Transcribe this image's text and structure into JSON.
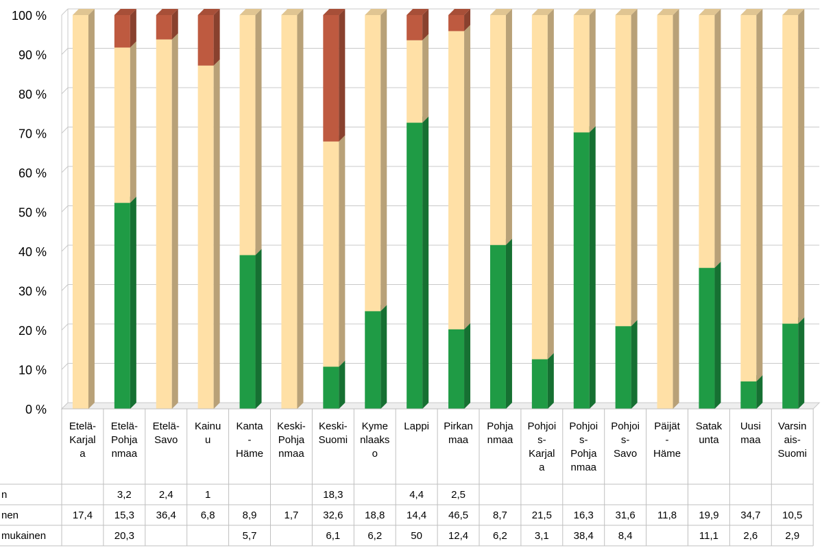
{
  "chart_data": {
    "type": "bar",
    "stacked": "percent",
    "three_d": true,
    "y_tick_labels": [
      "0 %",
      "10 %",
      "20 %",
      "30 %",
      "40 %",
      "50 %",
      "60 %",
      "70 %",
      "80 %",
      "90 %",
      "100 %"
    ],
    "categories": [
      [
        "Etelä-",
        "Karjal",
        "a"
      ],
      [
        "Etelä-",
        "Pohja",
        "nmaa"
      ],
      [
        "Etelä-",
        "Savo"
      ],
      [
        "Kainu",
        "u"
      ],
      [
        "Kanta",
        "-",
        "Häme"
      ],
      [
        "Keski-",
        "Pohja",
        "nmaa"
      ],
      [
        "Keski-",
        "Suomi"
      ],
      [
        "Kyme",
        "nlaaks",
        "o"
      ],
      [
        "Lappi"
      ],
      [
        "Pirkan",
        "maa"
      ],
      [
        "Pohja",
        "nmaa"
      ],
      [
        "Pohjoi",
        "s-",
        "Karjal",
        "a"
      ],
      [
        "Pohjoi",
        "s-",
        "Pohja",
        "nmaa"
      ],
      [
        "Pohjoi",
        "s-",
        "Savo"
      ],
      [
        "Päijät",
        "-",
        "Häme"
      ],
      [
        "Satak",
        "unta"
      ],
      [
        "Uusi",
        "maa"
      ],
      [
        "Varsin",
        "ais-",
        "Suomi"
      ]
    ],
    "series": [
      {
        "name": "mukainen",
        "color": "#1f9b45",
        "values": [
          null,
          20.3,
          null,
          null,
          5.7,
          null,
          6.1,
          6.2,
          50,
          12.4,
          6.2,
          3.1,
          38.4,
          8.4,
          null,
          11.1,
          2.6,
          2.9
        ],
        "labels": [
          "",
          "20,3",
          "",
          "",
          "5,7",
          "",
          "6,1",
          "6,2",
          "50",
          "12,4",
          "6,2",
          "3,1",
          "38,4",
          "8,4",
          "",
          "11,1",
          "2,6",
          "2,9"
        ]
      },
      {
        "name": "nen",
        "color": "#ffe0a6",
        "values": [
          17.4,
          15.3,
          36.4,
          6.8,
          8.9,
          1.7,
          32.6,
          18.8,
          14.4,
          46.5,
          8.7,
          21.5,
          16.3,
          31.6,
          11.8,
          19.9,
          34.7,
          10.5
        ],
        "labels": [
          "17,4",
          "15,3",
          "36,4",
          "6,8",
          "8,9",
          "1,7",
          "32,6",
          "18,8",
          "14,4",
          "46,5",
          "8,7",
          "21,5",
          "16,3",
          "31,6",
          "11,8",
          "19,9",
          "34,7",
          "10,5"
        ]
      },
      {
        "name": "n",
        "color": "#be5a40",
        "values": [
          null,
          3.2,
          2.4,
          1,
          null,
          null,
          18.3,
          null,
          4.4,
          2.5,
          null,
          null,
          null,
          null,
          null,
          null,
          null,
          null
        ],
        "labels": [
          "",
          "3,2",
          "2,4",
          "1",
          "",
          "",
          "18,3",
          "",
          "4,4",
          "2,5",
          "",
          "",
          "",
          "",
          "",
          "",
          "",
          ""
        ]
      }
    ],
    "ylim": [
      0,
      100
    ],
    "grid": true
  }
}
